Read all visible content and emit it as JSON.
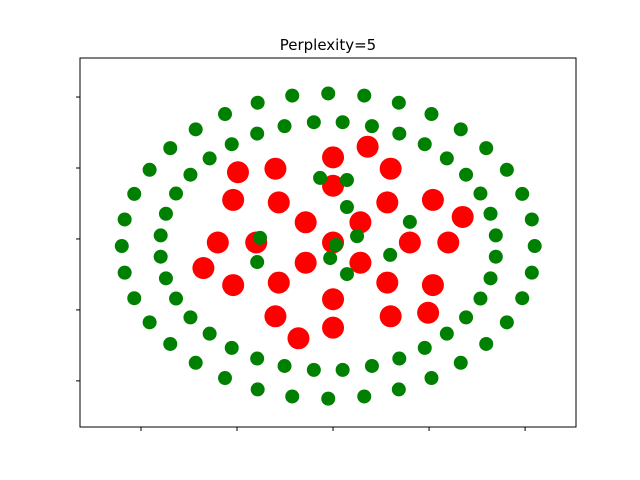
{
  "chart_data": {
    "type": "scatter",
    "title": "Perplexity=5",
    "xlim": [
      -52.7,
      50.6
    ],
    "ylim": [
      -53,
      51
    ],
    "xticks": [
      -40,
      -20,
      0,
      20,
      40
    ],
    "yticks": [
      -40,
      -20,
      0,
      20,
      40
    ],
    "series": [
      {
        "name": "red",
        "color": "#ff0000",
        "x": [
          24,
          20.8,
          12,
          0,
          -12,
          -20.8,
          -24,
          -20.8,
          -12,
          0,
          12,
          20.8,
          16,
          11.3,
          0,
          -11.3,
          -16,
          -11.3,
          0,
          11.3,
          5.7,
          -5.7,
          -5.7,
          5.7,
          27,
          7.2,
          -19.8,
          -27,
          -7.2,
          19.8,
          0
        ],
        "y": [
          -1,
          11,
          19.8,
          23,
          19.8,
          11,
          -1,
          -13,
          -21.8,
          -25,
          -21.8,
          -13,
          -1,
          10.3,
          15,
          10.3,
          -1,
          -12.3,
          -17,
          -12.3,
          4.7,
          4.7,
          -6.7,
          -6.7,
          6.2,
          26,
          18.8,
          -8.2,
          -28,
          -20.8,
          -1
        ]
      },
      {
        "name": "green",
        "color": "#008000",
        "x": [
          42,
          41.4,
          39.4,
          36.2,
          31.9,
          26.6,
          20.5,
          13.7,
          6.5,
          -1,
          -8.5,
          -15.7,
          -22.5,
          -28.6,
          -33.9,
          -38.2,
          -41.4,
          -43.4,
          -44,
          -43.4,
          -41.4,
          -38.2,
          -33.9,
          -28.6,
          -22.5,
          -15.7,
          -8.5,
          -1,
          6.5,
          13.7,
          20.5,
          26.6,
          31.9,
          36.2,
          39.4,
          41.4,
          33.9,
          32.8,
          30.7,
          27.7,
          23.7,
          19.1,
          13.8,
          8.1,
          2,
          -4,
          -10.1,
          -15.8,
          -21.1,
          -25.7,
          -29.7,
          -32.7,
          -34.8,
          -35.9,
          -35.9,
          -34.8,
          -32.7,
          -29.7,
          -25.7,
          -21.1,
          -15.8,
          -10.1,
          -4,
          2,
          8.1,
          13.8,
          19.1,
          23.7,
          27.7,
          30.7,
          32.8,
          33.9,
          -2.7,
          2.9,
          2.9,
          -15.2,
          0.6,
          5,
          -0.6,
          2.9,
          -15.8,
          16,
          11.9
        ],
        "y": [
          -2,
          5.5,
          12.7,
          19.5,
          25.6,
          30.9,
          35.2,
          38.4,
          40.4,
          41,
          40.4,
          38.4,
          35.2,
          30.9,
          25.6,
          19.5,
          12.7,
          5.5,
          -2,
          -9.5,
          -16.7,
          -23.5,
          -29.6,
          -34.9,
          -39.2,
          -42.4,
          -44.4,
          -45,
          -44.4,
          -42.4,
          -39.2,
          -34.9,
          -29.6,
          -23.5,
          -16.7,
          -9.5,
          1,
          7.1,
          12.8,
          18.1,
          22.7,
          26.7,
          29.7,
          31.8,
          32.9,
          32.9,
          31.8,
          29.7,
          26.7,
          22.7,
          18.1,
          12.8,
          7.1,
          1,
          -5,
          -11.1,
          -16.8,
          -22.1,
          -26.7,
          -30.7,
          -33.7,
          -35.8,
          -36.9,
          -36.9,
          -35.8,
          -33.7,
          -30.7,
          -26.7,
          -22.1,
          -16.8,
          -11.1,
          -5,
          17.2,
          16.6,
          9,
          0.3,
          -1.7,
          0.8,
          -5.4,
          -9.9,
          -6.5,
          4.8,
          -4.5
        ]
      }
    ]
  }
}
